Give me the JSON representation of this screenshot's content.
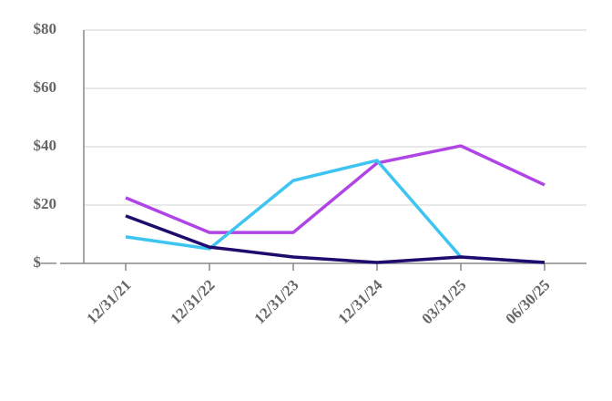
{
  "chart_data": {
    "type": "line",
    "categories": [
      "12/31/21",
      "12/31/22",
      "12/31/23",
      "12/31/24",
      "03/31/25",
      "06/30/25"
    ],
    "series": [
      {
        "color": "#b044e6",
        "values": [
          22.5,
          10.6,
          10.6,
          34.4,
          40.3,
          26.9
        ]
      },
      {
        "color": "#3ec4f0",
        "values": [
          9.1,
          5,
          28.4,
          35.3,
          2.2,
          0.3
        ]
      },
      {
        "color": "#1f0a6e",
        "values": [
          16.3,
          5.6,
          2.2,
          0.3,
          2.2,
          0.3
        ]
      }
    ],
    "ylim": [
      0,
      80
    ],
    "yticks": [
      {
        "value": 0,
        "label": "$—"
      },
      {
        "value": 20,
        "label": "$20"
      },
      {
        "value": 40,
        "label": "$40"
      },
      {
        "value": 60,
        "label": "$60"
      },
      {
        "value": 80,
        "label": "$80"
      }
    ],
    "grid": true
  }
}
